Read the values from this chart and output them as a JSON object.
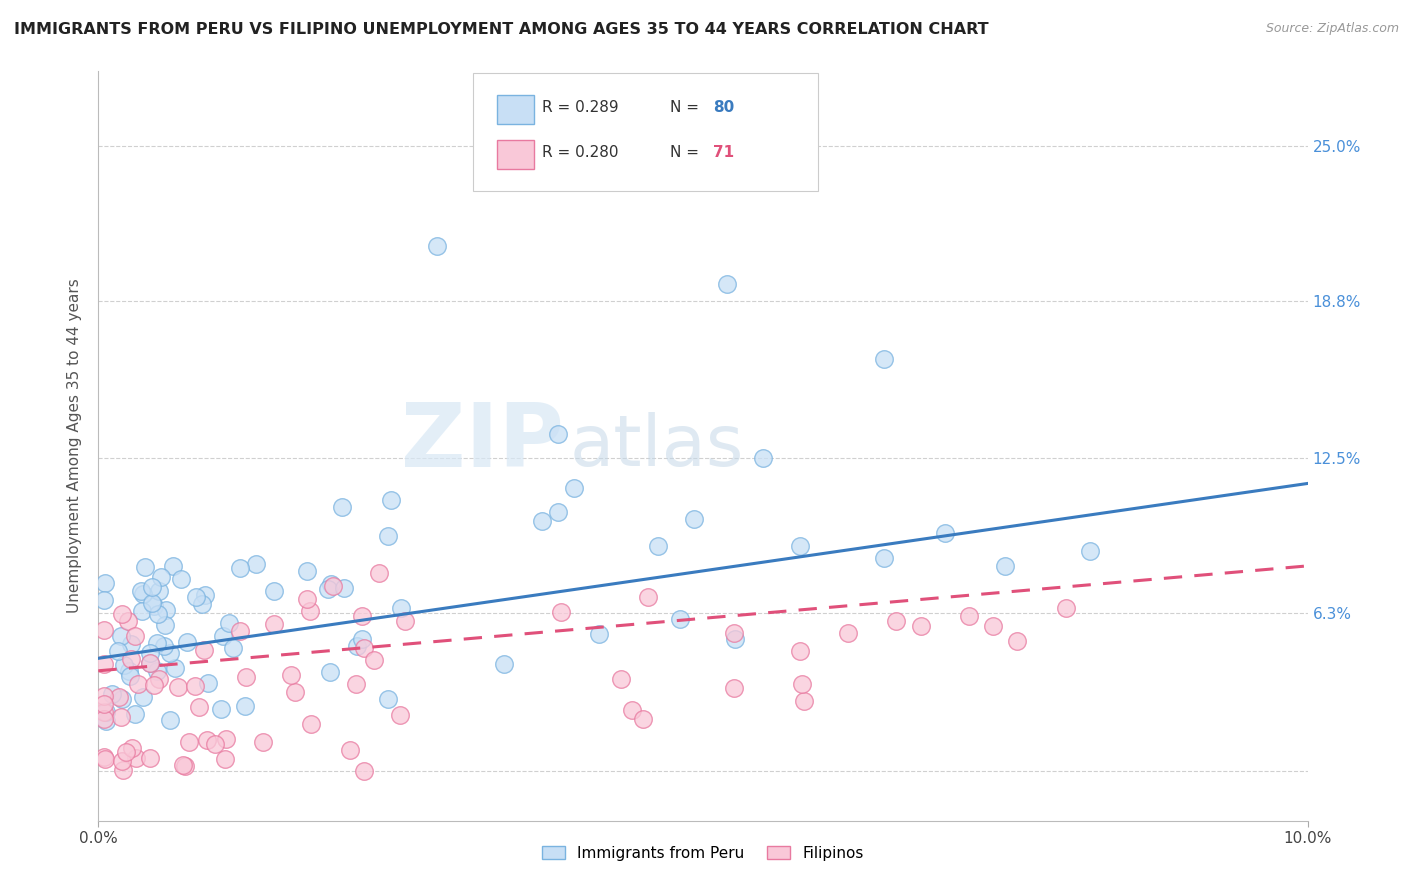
{
  "title": "IMMIGRANTS FROM PERU VS FILIPINO UNEMPLOYMENT AMONG AGES 35 TO 44 YEARS CORRELATION CHART",
  "source": "Source: ZipAtlas.com",
  "ylabel": "Unemployment Among Ages 35 to 44 years",
  "xlim": [
    0.0,
    0.1
  ],
  "ylim": [
    -0.02,
    0.28
  ],
  "ytick_positions": [
    0.0,
    0.063,
    0.125,
    0.188,
    0.25
  ],
  "yticklabels": [
    "",
    "6.3%",
    "12.5%",
    "18.8%",
    "25.0%"
  ],
  "series1_name": "Immigrants from Peru",
  "series1_color": "#c8dff5",
  "series1_edge_color": "#7ab3e0",
  "series1_R": 0.289,
  "series1_N": 80,
  "series1_line_color": "#3a7bbf",
  "series2_name": "Filipinos",
  "series2_color": "#f9c8d8",
  "series2_edge_color": "#e87aa0",
  "series2_R": 0.28,
  "series2_N": 71,
  "series2_line_color": "#e0507a",
  "watermark_zip": "ZIP",
  "watermark_atlas": "atlas",
  "background_color": "#ffffff",
  "grid_color": "#d0d0d0",
  "title_fontsize": 11.5,
  "axis_fontsize": 11,
  "legend_R_color": "#333333",
  "legend_N1_color": "#3a7bbf",
  "legend_N2_color": "#e0507a"
}
